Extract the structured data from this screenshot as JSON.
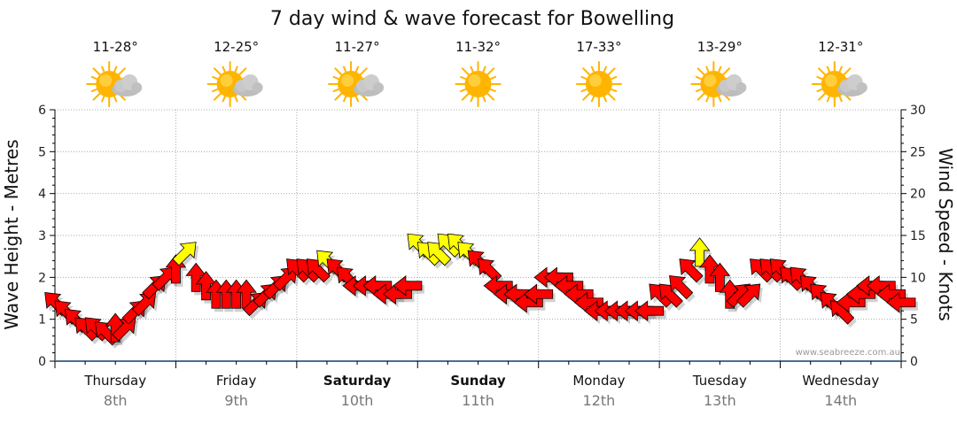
{
  "title": "7 day wind & wave forecast for Bowelling",
  "left_axis_label": "Wave Height - Metres",
  "right_axis_label": "Wind Speed - Knots",
  "watermark": "www.seabreeze.com.au",
  "days": [
    {
      "name": "Thursday",
      "date": "8th",
      "temp": "11-28°",
      "icon": "partly-cloudy-icon",
      "bold": false
    },
    {
      "name": "Friday",
      "date": "9th",
      "temp": "12-25°",
      "icon": "partly-cloudy-icon",
      "bold": false
    },
    {
      "name": "Saturday",
      "date": "10th",
      "temp": "11-27°",
      "icon": "partly-cloudy-icon",
      "bold": true
    },
    {
      "name": "Sunday",
      "date": "11th",
      "temp": "11-32°",
      "icon": "sun-icon",
      "bold": true
    },
    {
      "name": "Monday",
      "date": "12th",
      "temp": "17-33°",
      "icon": "sun-icon",
      "bold": false
    },
    {
      "name": "Tuesday",
      "date": "13th",
      "temp": "13-29°",
      "icon": "partly-cloudy-icon",
      "bold": false
    },
    {
      "name": "Wednesday",
      "date": "14th",
      "temp": "12-31°",
      "icon": "partly-cloudy-icon",
      "bold": false
    }
  ],
  "colors": {
    "wind_red": "#ff0000",
    "wind_yellow": "#ffff00",
    "grid": "#aaaaaa",
    "axis": "#000000",
    "sun": "#ffb400",
    "cloud": "#bdbdbd"
  },
  "chart_data": {
    "type": "scatter",
    "title": "7 day wind & wave forecast for Bowelling",
    "ylabel_left": "Wave Height - Metres",
    "ylabel_right": "Wind Speed - Knots",
    "ylim_left": [
      0,
      6
    ],
    "ylim_right": [
      0,
      30
    ],
    "yticks_left": [
      0,
      1,
      2,
      3,
      4,
      5,
      6
    ],
    "yticks_right": [
      0,
      5,
      10,
      15,
      20,
      25,
      30
    ],
    "x_unit": "hours from start of Thursday",
    "xlim": [
      0,
      168
    ],
    "series": [
      {
        "name": "Wind (knots) with direction arrows",
        "points": [
          {
            "t": 0,
            "speed": 7,
            "dir": "NW",
            "color": "red"
          },
          {
            "t": 2,
            "speed": 6,
            "dir": "NW",
            "color": "red"
          },
          {
            "t": 4,
            "speed": 5,
            "dir": "NW",
            "color": "red"
          },
          {
            "t": 6,
            "speed": 4,
            "dir": "NW",
            "color": "red"
          },
          {
            "t": 8,
            "speed": 4,
            "dir": "NW",
            "color": "red"
          },
          {
            "t": 10,
            "speed": 3.5,
            "dir": "NW",
            "color": "red"
          },
          {
            "t": 12,
            "speed": 4,
            "dir": "N",
            "color": "red"
          },
          {
            "t": 14,
            "speed": 4,
            "dir": "NE",
            "color": "red"
          },
          {
            "t": 16,
            "speed": 6,
            "dir": "NE",
            "color": "red"
          },
          {
            "t": 18,
            "speed": 7,
            "dir": "NE",
            "color": "red"
          },
          {
            "t": 20,
            "speed": 9,
            "dir": "NE",
            "color": "red"
          },
          {
            "t": 22,
            "speed": 10,
            "dir": "NE",
            "color": "red"
          },
          {
            "t": 24,
            "speed": 11,
            "dir": "N",
            "color": "red"
          },
          {
            "t": 26,
            "speed": 13,
            "dir": "NE",
            "color": "yellow"
          },
          {
            "t": 28,
            "speed": 10,
            "dir": "N",
            "color": "red"
          },
          {
            "t": 30,
            "speed": 9,
            "dir": "N",
            "color": "red"
          },
          {
            "t": 32,
            "speed": 8,
            "dir": "N",
            "color": "red"
          },
          {
            "t": 34,
            "speed": 8,
            "dir": "N",
            "color": "red"
          },
          {
            "t": 36,
            "speed": 8,
            "dir": "N",
            "color": "red"
          },
          {
            "t": 38,
            "speed": 8,
            "dir": "N",
            "color": "red"
          },
          {
            "t": 40,
            "speed": 7,
            "dir": "NE",
            "color": "red"
          },
          {
            "t": 42,
            "speed": 8,
            "dir": "NE",
            "color": "red"
          },
          {
            "t": 44,
            "speed": 9,
            "dir": "NE",
            "color": "red"
          },
          {
            "t": 46,
            "speed": 10,
            "dir": "NE",
            "color": "red"
          },
          {
            "t": 48,
            "speed": 11,
            "dir": "NW",
            "color": "red"
          },
          {
            "t": 50,
            "speed": 11,
            "dir": "NW",
            "color": "red"
          },
          {
            "t": 52,
            "speed": 11,
            "dir": "NW",
            "color": "red"
          },
          {
            "t": 54,
            "speed": 12,
            "dir": "NW",
            "color": "yellow"
          },
          {
            "t": 56,
            "speed": 11,
            "dir": "NW",
            "color": "red"
          },
          {
            "t": 58,
            "speed": 10,
            "dir": "NW",
            "color": "red"
          },
          {
            "t": 60,
            "speed": 9,
            "dir": "W",
            "color": "red"
          },
          {
            "t": 62,
            "speed": 9,
            "dir": "W",
            "color": "red"
          },
          {
            "t": 64,
            "speed": 9,
            "dir": "W",
            "color": "red"
          },
          {
            "t": 66,
            "speed": 8,
            "dir": "W",
            "color": "red"
          },
          {
            "t": 68,
            "speed": 8,
            "dir": "W",
            "color": "red"
          },
          {
            "t": 70,
            "speed": 9,
            "dir": "W",
            "color": "red"
          },
          {
            "t": 72,
            "speed": 14,
            "dir": "NW",
            "color": "yellow"
          },
          {
            "t": 74,
            "speed": 13,
            "dir": "NW",
            "color": "yellow"
          },
          {
            "t": 76,
            "speed": 13,
            "dir": "NW",
            "color": "yellow"
          },
          {
            "t": 78,
            "speed": 14,
            "dir": "NW",
            "color": "yellow"
          },
          {
            "t": 80,
            "speed": 14,
            "dir": "NW",
            "color": "yellow"
          },
          {
            "t": 82,
            "speed": 13,
            "dir": "NW",
            "color": "yellow"
          },
          {
            "t": 84,
            "speed": 12,
            "dir": "NW",
            "color": "red"
          },
          {
            "t": 86,
            "speed": 11,
            "dir": "NW",
            "color": "red"
          },
          {
            "t": 88,
            "speed": 9,
            "dir": "W",
            "color": "red"
          },
          {
            "t": 90,
            "speed": 8,
            "dir": "W",
            "color": "red"
          },
          {
            "t": 92,
            "speed": 8,
            "dir": "W",
            "color": "red"
          },
          {
            "t": 94,
            "speed": 7,
            "dir": "W",
            "color": "red"
          },
          {
            "t": 96,
            "speed": 8,
            "dir": "W",
            "color": "red"
          },
          {
            "t": 98,
            "speed": 10,
            "dir": "W",
            "color": "red"
          },
          {
            "t": 100,
            "speed": 10,
            "dir": "W",
            "color": "red"
          },
          {
            "t": 102,
            "speed": 9,
            "dir": "W",
            "color": "red"
          },
          {
            "t": 104,
            "speed": 8,
            "dir": "W",
            "color": "red"
          },
          {
            "t": 106,
            "speed": 7,
            "dir": "W",
            "color": "red"
          },
          {
            "t": 108,
            "speed": 6,
            "dir": "W",
            "color": "red"
          },
          {
            "t": 110,
            "speed": 6,
            "dir": "W",
            "color": "red"
          },
          {
            "t": 112,
            "speed": 6,
            "dir": "W",
            "color": "red"
          },
          {
            "t": 114,
            "speed": 6,
            "dir": "W",
            "color": "red"
          },
          {
            "t": 116,
            "speed": 6,
            "dir": "W",
            "color": "red"
          },
          {
            "t": 118,
            "speed": 6,
            "dir": "W",
            "color": "red"
          },
          {
            "t": 120,
            "speed": 8,
            "dir": "NW",
            "color": "red"
          },
          {
            "t": 122,
            "speed": 8,
            "dir": "NW",
            "color": "red"
          },
          {
            "t": 124,
            "speed": 9,
            "dir": "NW",
            "color": "red"
          },
          {
            "t": 126,
            "speed": 11,
            "dir": "NW",
            "color": "red"
          },
          {
            "t": 128,
            "speed": 13,
            "dir": "N",
            "color": "yellow"
          },
          {
            "t": 130,
            "speed": 11,
            "dir": "N",
            "color": "red"
          },
          {
            "t": 132,
            "speed": 10,
            "dir": "N",
            "color": "red"
          },
          {
            "t": 134,
            "speed": 8,
            "dir": "N",
            "color": "red"
          },
          {
            "t": 136,
            "speed": 8,
            "dir": "NE",
            "color": "red"
          },
          {
            "t": 138,
            "speed": 8,
            "dir": "NE",
            "color": "red"
          },
          {
            "t": 140,
            "speed": 11,
            "dir": "NW",
            "color": "red"
          },
          {
            "t": 142,
            "speed": 11,
            "dir": "NW",
            "color": "red"
          },
          {
            "t": 144,
            "speed": 11,
            "dir": "NW",
            "color": "red"
          },
          {
            "t": 146,
            "speed": 10,
            "dir": "NW",
            "color": "red"
          },
          {
            "t": 148,
            "speed": 10,
            "dir": "NW",
            "color": "red"
          },
          {
            "t": 150,
            "speed": 9,
            "dir": "NW",
            "color": "red"
          },
          {
            "t": 152,
            "speed": 8,
            "dir": "NW",
            "color": "red"
          },
          {
            "t": 154,
            "speed": 7,
            "dir": "NW",
            "color": "red"
          },
          {
            "t": 156,
            "speed": 6,
            "dir": "NW",
            "color": "red"
          },
          {
            "t": 158,
            "speed": 7,
            "dir": "W",
            "color": "red"
          },
          {
            "t": 160,
            "speed": 8,
            "dir": "W",
            "color": "red"
          },
          {
            "t": 162,
            "speed": 9,
            "dir": "W",
            "color": "red"
          },
          {
            "t": 164,
            "speed": 9,
            "dir": "W",
            "color": "red"
          },
          {
            "t": 166,
            "speed": 8,
            "dir": "W",
            "color": "red"
          },
          {
            "t": 168,
            "speed": 7,
            "dir": "W",
            "color": "red"
          }
        ]
      }
    ]
  }
}
